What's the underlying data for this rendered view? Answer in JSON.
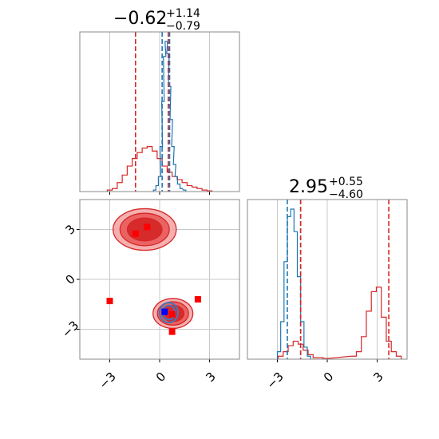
{
  "chart_data": {
    "type": "corner",
    "range": [
      -4.8,
      4.8
    ],
    "ticks": [
      -3,
      0,
      3
    ],
    "tick_labels": [
      "−3",
      "0",
      "3"
    ],
    "grid": true,
    "colors": {
      "red": "#d62728",
      "blue": "#1f77b4",
      "red_fill": "#f4a6a6",
      "marker_red": "#ff0000",
      "marker_blue": "#0000ff"
    },
    "diagonal": [
      {
        "title_value": "−0.62",
        "title_plus": "+1.14",
        "title_minus": "−0.79",
        "hist_red": {
          "x": [
            -3.0,
            -2.7,
            -2.4,
            -2.1,
            -1.8,
            -1.5,
            -1.2,
            -0.9,
            -0.6,
            -0.3,
            0.0,
            0.3,
            0.6,
            0.9,
            1.2,
            1.5,
            1.8,
            2.1,
            2.4,
            2.7,
            3.0
          ],
          "density": [
            0.01,
            0.02,
            0.06,
            0.11,
            0.17,
            0.22,
            0.26,
            0.29,
            0.3,
            0.27,
            0.22,
            0.17,
            0.13,
            0.1,
            0.08,
            0.06,
            0.04,
            0.03,
            0.02,
            0.01,
            0.005
          ]
        },
        "hist_blue": {
          "x": [
            -0.3,
            -0.15,
            0.0,
            0.1,
            0.2,
            0.3,
            0.4,
            0.5,
            0.6,
            0.7,
            0.8,
            0.9,
            1.0,
            1.15,
            1.3,
            1.5
          ],
          "density": [
            0.01,
            0.04,
            0.1,
            0.3,
            0.6,
            0.9,
            1.0,
            0.92,
            0.7,
            0.48,
            0.3,
            0.18,
            0.1,
            0.05,
            0.02,
            0.01
          ]
        },
        "lines_red": [
          -1.45,
          0.52
        ],
        "lines_blue": [
          0.15,
          0.6
        ]
      },
      {
        "title_value": "2.95",
        "title_plus": "+0.55",
        "title_minus": "−4.60",
        "hist_red": {
          "x": [
            -2.8,
            -2.5,
            -2.2,
            -1.9,
            -1.6,
            -1.3,
            -1.0,
            -0.7,
            -0.4,
            -0.1,
            1.6,
            1.9,
            2.2,
            2.5,
            2.8,
            3.1,
            3.4,
            3.7,
            4.0,
            4.3
          ],
          "density": [
            0.02,
            0.05,
            0.09,
            0.12,
            0.1,
            0.06,
            0.03,
            0.01,
            0.01,
            0.005,
            0.02,
            0.05,
            0.15,
            0.32,
            0.45,
            0.48,
            0.28,
            0.12,
            0.05,
            0.02
          ]
        },
        "hist_blue": {
          "x": [
            -2.9,
            -2.7,
            -2.5,
            -2.3,
            -2.1,
            -1.9,
            -1.7,
            -1.5,
            -1.3,
            -1.1
          ],
          "density": [
            0.05,
            0.25,
            0.65,
            0.95,
            1.0,
            0.85,
            0.55,
            0.25,
            0.08,
            0.02
          ]
        },
        "lines_red": [
          -1.6,
          3.7
        ],
        "lines_blue": [
          -2.4,
          -1.6
        ]
      }
    ],
    "joint": {
      "red_clusters": [
        {
          "cx": -0.9,
          "cy": 3.0,
          "rx": 1.9,
          "ry": 1.25
        },
        {
          "cx": 0.8,
          "cy": -2.05,
          "rx": 1.2,
          "ry": 0.9
        }
      ],
      "blue_cluster": {
        "cx": 0.55,
        "cy": -2.0,
        "rx": 0.55,
        "ry": 0.6
      },
      "red_markers": [
        {
          "x": -0.75,
          "y": 3.15
        },
        {
          "x": -1.45,
          "y": 2.75
        },
        {
          "x": -3.0,
          "y": -1.3
        },
        {
          "x": 2.3,
          "y": -1.2
        },
        {
          "x": 0.75,
          "y": -2.1
        },
        {
          "x": 0.75,
          "y": -3.15
        }
      ],
      "blue_markers": [
        {
          "x": 0.3,
          "y": -1.95
        }
      ]
    }
  }
}
